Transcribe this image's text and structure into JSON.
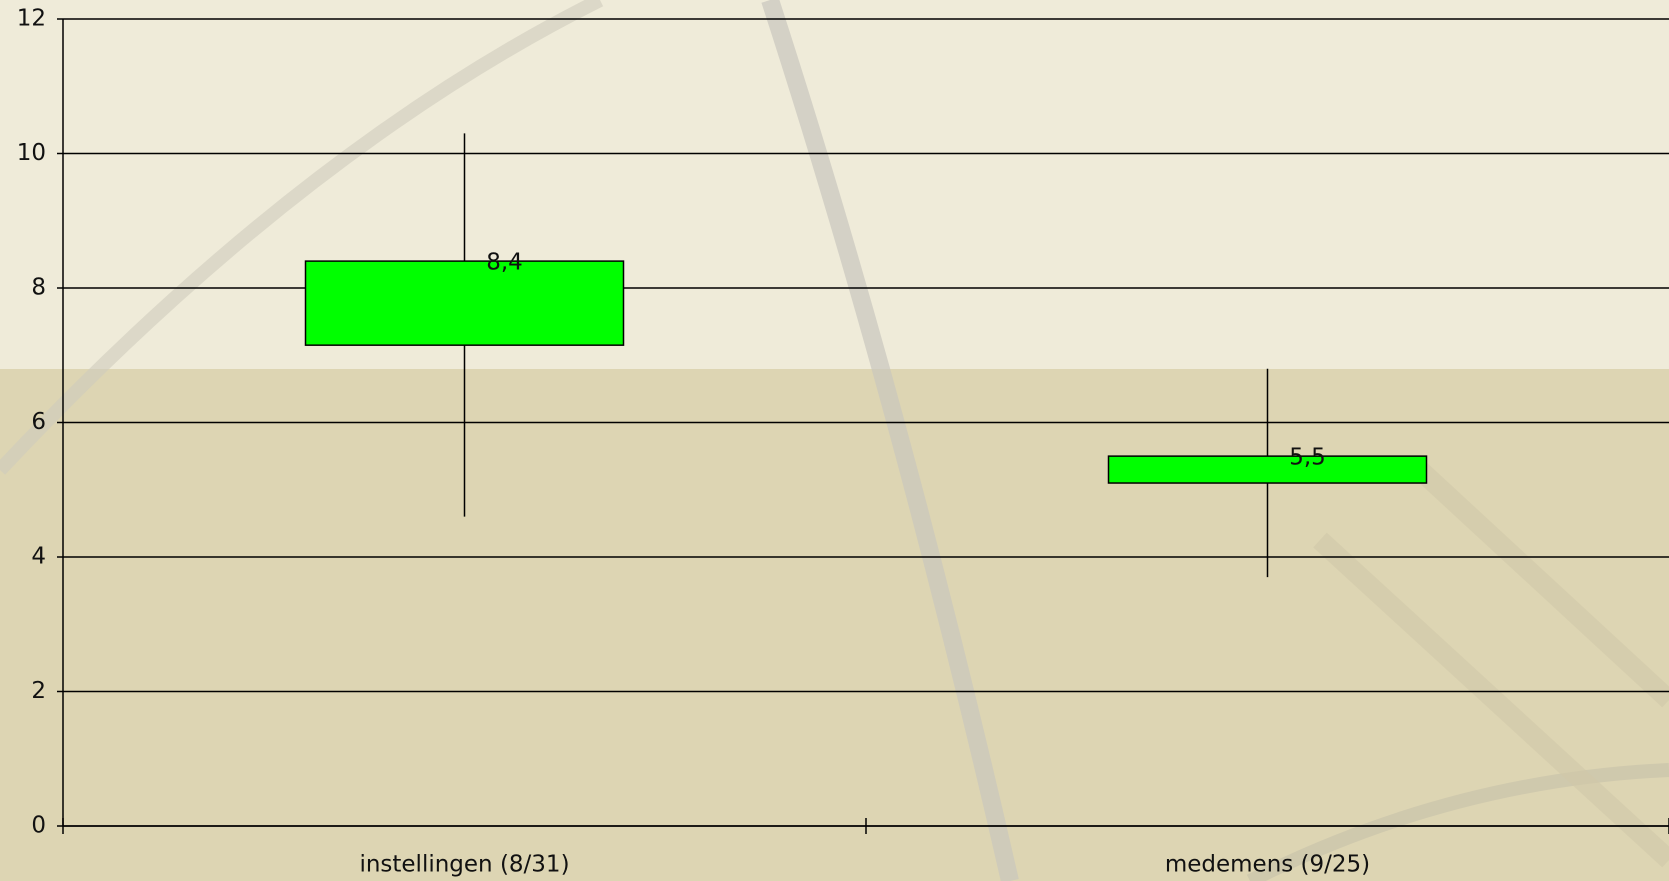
{
  "chart_data": {
    "type": "candlestick",
    "categories": [
      "instellingen (8/31)",
      "medemens (9/25)"
    ],
    "open": [
      7.15,
      5.1
    ],
    "high": [
      10.3,
      6.8
    ],
    "low": [
      4.6,
      3.7
    ],
    "close": [
      8.4,
      5.5
    ],
    "value_labels": [
      "8,4",
      "5,5"
    ],
    "color": "#00ff00",
    "ylim": [
      0,
      12
    ],
    "yticks": [
      0,
      2,
      4,
      6,
      8,
      10,
      12
    ],
    "grid": true
  }
}
